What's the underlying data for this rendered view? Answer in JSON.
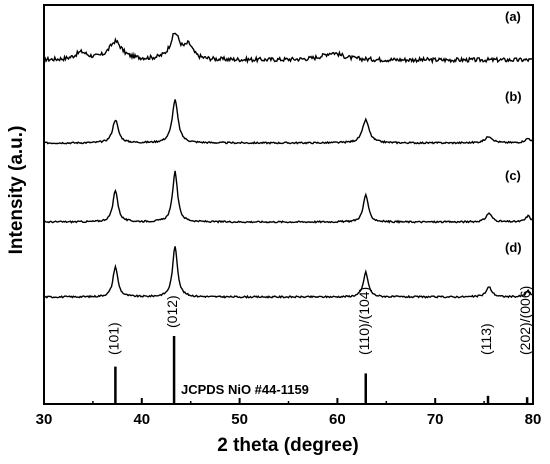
{
  "chart_data": {
    "type": "line",
    "xlabel": "2 theta (degree)",
    "ylabel": "Intensity (a.u.)",
    "xlim": [
      30,
      80
    ],
    "x_ticks": [
      30,
      40,
      50,
      60,
      70,
      80
    ],
    "y_ticks_shown": false,
    "grid": false,
    "legend": "none",
    "series": [
      {
        "name": "(a)",
        "peaks": [
          {
            "x": 37.3,
            "height": 0.25,
            "width": 1.6
          },
          {
            "x": 43.4,
            "height": 0.35,
            "width": 1.2
          },
          {
            "x": 44.8,
            "height": 0.18,
            "width": 1.0
          },
          {
            "x": 33.8,
            "height": 0.1,
            "width": 1.5
          },
          {
            "x": 59.5,
            "height": 0.1,
            "width": 2.5
          }
        ],
        "noise": 0.06
      },
      {
        "name": "(b)",
        "peaks": [
          {
            "x": 37.3,
            "height": 0.42,
            "width": 0.7
          },
          {
            "x": 43.4,
            "height": 0.78,
            "width": 0.7
          },
          {
            "x": 62.9,
            "height": 0.42,
            "width": 0.8
          },
          {
            "x": 75.5,
            "height": 0.12,
            "width": 0.9
          },
          {
            "x": 79.5,
            "height": 0.08,
            "width": 0.8
          }
        ],
        "noise": 0.03
      },
      {
        "name": "(c)",
        "peaks": [
          {
            "x": 37.3,
            "height": 0.58,
            "width": 0.6
          },
          {
            "x": 43.4,
            "height": 0.92,
            "width": 0.6
          },
          {
            "x": 62.9,
            "height": 0.5,
            "width": 0.6
          },
          {
            "x": 75.5,
            "height": 0.16,
            "width": 0.7
          },
          {
            "x": 79.5,
            "height": 0.11,
            "width": 0.6
          }
        ],
        "noise": 0.03
      },
      {
        "name": "(d)",
        "peaks": [
          {
            "x": 37.3,
            "height": 0.55,
            "width": 0.6
          },
          {
            "x": 43.4,
            "height": 0.92,
            "width": 0.6
          },
          {
            "x": 62.9,
            "height": 0.45,
            "width": 0.6
          },
          {
            "x": 75.5,
            "height": 0.18,
            "width": 0.7
          },
          {
            "x": 79.5,
            "height": 0.11,
            "width": 0.6
          }
        ],
        "noise": 0.03
      }
    ],
    "reference": {
      "name": "JCPDS NiO #44-1159",
      "lines": [
        {
          "x": 37.3,
          "intensity": 0.55,
          "label": "(101)"
        },
        {
          "x": 43.3,
          "intensity": 1.0,
          "label": "(012)"
        },
        {
          "x": 62.9,
          "intensity": 0.45,
          "label": "(110)/(104)"
        },
        {
          "x": 75.4,
          "intensity": 0.12,
          "label": "(113)"
        },
        {
          "x": 79.4,
          "intensity": 0.1,
          "label": "(202)/(006)"
        }
      ]
    }
  }
}
